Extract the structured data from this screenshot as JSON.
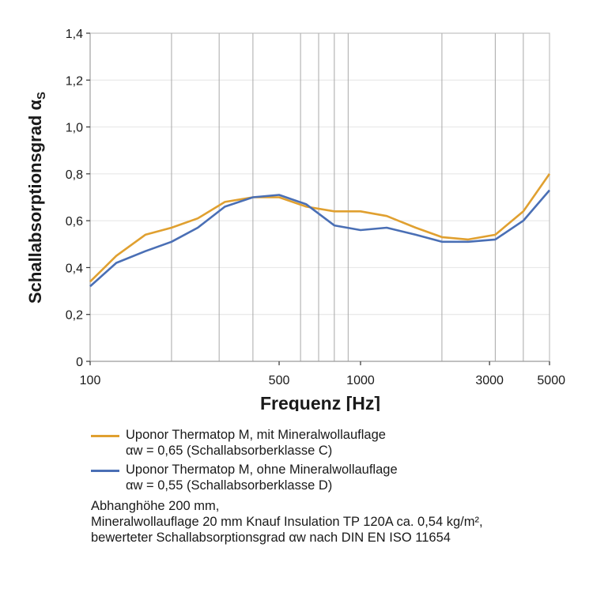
{
  "chart_data": {
    "type": "line",
    "xscale": "log",
    "xlim": [
      100,
      5000
    ],
    "ylim": [
      0,
      1.4
    ],
    "xlabel": "Frequenz [Hz]",
    "ylabel": "Schallabsorptionsgrad α",
    "ylabel_sub": "S",
    "x_ticks": [
      {
        "value": 100,
        "label": "100"
      },
      {
        "value": 500,
        "label": "500"
      },
      {
        "value": 1000,
        "label": "1000"
      },
      {
        "value": 3000,
        "label": "3000"
      },
      {
        "value": 5000,
        "label": "5000"
      }
    ],
    "y_ticks": [
      {
        "value": 0,
        "label": "0"
      },
      {
        "value": 0.2,
        "label": "0,2"
      },
      {
        "value": 0.4,
        "label": "0,4"
      },
      {
        "value": 0.6,
        "label": "0,6"
      },
      {
        "value": 0.8,
        "label": "0,8"
      },
      {
        "value": 1.0,
        "label": "1,0"
      },
      {
        "value": 1.2,
        "label": "1,2"
      },
      {
        "value": 1.4,
        "label": "1,4"
      }
    ],
    "vertical_gridlines_at": [
      200,
      300,
      400,
      600,
      700,
      800,
      900,
      2000,
      3150,
      4000
    ],
    "series": [
      {
        "name": "Uponor Thermatop M, mit Mineralwollauflage",
        "color": "#e0a030",
        "x": [
          100,
          125,
          160,
          200,
          250,
          315,
          400,
          500,
          630,
          800,
          1000,
          1250,
          1600,
          2000,
          2500,
          3150,
          4000,
          5000
        ],
        "y": [
          0.34,
          0.45,
          0.54,
          0.57,
          0.61,
          0.68,
          0.7,
          0.7,
          0.66,
          0.64,
          0.64,
          0.62,
          0.57,
          0.53,
          0.52,
          0.54,
          0.64,
          0.8
        ]
      },
      {
        "name": "Uponor Thermatop M, ohne Mineralwollauflage",
        "color": "#4a6fb5",
        "x": [
          100,
          125,
          160,
          200,
          250,
          315,
          400,
          500,
          630,
          800,
          1000,
          1250,
          1600,
          2000,
          2500,
          3150,
          4000,
          5000
        ],
        "y": [
          0.32,
          0.42,
          0.47,
          0.51,
          0.57,
          0.66,
          0.7,
          0.71,
          0.67,
          0.58,
          0.56,
          0.57,
          0.54,
          0.51,
          0.51,
          0.52,
          0.6,
          0.73
        ]
      }
    ]
  },
  "legend": {
    "entries": [
      {
        "line1": "Uponor Thermatop M, mit Mineralwollauflage",
        "line2": "αw = 0,65 (Schallabsorberklasse C)",
        "color": "#e0a030"
      },
      {
        "line1": "Uponor Thermatop M, ohne Mineralwollauflage",
        "line2": "αw = 0,55 (Schallabsorberklasse D)",
        "color": "#4a6fb5"
      }
    ],
    "footnote": [
      "Abhanghöhe 200 mm,",
      "Mineralwollauflage 20 mm Knauf Insulation TP 120A ca. 0,54 kg/m²,",
      "bewerteter Schallabsorptionsgrad αw nach DIN EN ISO 11654"
    ]
  }
}
